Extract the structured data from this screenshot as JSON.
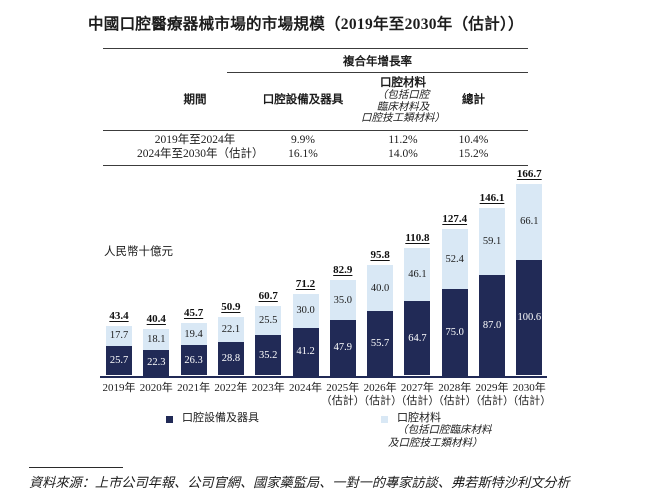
{
  "title": "中國口腔醫療器械市場的市場規模（2019年至2030年（估計））",
  "table": {
    "cagr_header": "複合年增長率",
    "columns": {
      "period": "期間",
      "equipment": "口腔設備及器具",
      "materials": "口腔材料",
      "materials_note_lines": [
        "（包括口腔",
        "臨床材料及",
        "口腔技工類材料）"
      ],
      "total": "總計"
    },
    "rows": [
      {
        "period": "2019年至2024年",
        "equipment": "9.9%",
        "materials": "11.2%",
        "total": "10.4%"
      },
      {
        "period": "2024年至2030年（估計）",
        "equipment": "16.1%",
        "materials": "14.0%",
        "total": "15.2%"
      }
    ]
  },
  "chart_data": {
    "type": "bar",
    "stacked": true,
    "title": "中國口腔醫療器械市場的市場規模（2019年至2030年（估計））",
    "ylabel": "人民幣十億元",
    "xlabel": "",
    "ylim": [
      0,
      180
    ],
    "grid": false,
    "legend_position": "bottom",
    "categories": [
      "2019年",
      "2020年",
      "2021年",
      "2022年",
      "2023年",
      "2024年",
      "2025年",
      "2026年",
      "2027年",
      "2028年",
      "2029年",
      "2030年"
    ],
    "category_suffixes": [
      "",
      "",
      "",
      "",
      "",
      "",
      "（估計）",
      "（估計）",
      "（估計）",
      "（估計）",
      "（估計）",
      "（估計）"
    ],
    "series": [
      {
        "name": "口腔設備及器具",
        "color": "#212A56",
        "values": [
          25.7,
          22.3,
          26.3,
          28.8,
          35.2,
          41.2,
          47.9,
          55.7,
          64.7,
          75.0,
          87.0,
          100.6
        ]
      },
      {
        "name": "口腔材料（包括口腔臨床材料及口腔技工類材料）",
        "color": "#D9E8F5",
        "values": [
          17.7,
          18.1,
          19.4,
          22.1,
          25.5,
          30.0,
          35.0,
          40.0,
          46.1,
          52.4,
          59.1,
          66.1
        ]
      }
    ],
    "totals": [
      43.4,
      40.4,
      45.7,
      50.9,
      60.7,
      71.2,
      82.9,
      95.8,
      110.8,
      127.4,
      146.1,
      166.7
    ]
  },
  "legend": {
    "items": [
      {
        "label": "口腔設備及器具",
        "note_lines": []
      },
      {
        "label": "口腔材料",
        "note_lines": [
          "（包括口腔臨床材料",
          "及口腔技工類材料）"
        ]
      }
    ]
  },
  "source": "資料來源：上市公司年報、公司官網、國家藥監局、一對一的專家訪談、弗若斯特沙利文分析",
  "colors": {
    "equipment": "#212A56",
    "materials": "#D9E8F5",
    "axis": "#212A56",
    "text": "#1c1c1c",
    "bar_label_on_dark": "#ffffff"
  }
}
